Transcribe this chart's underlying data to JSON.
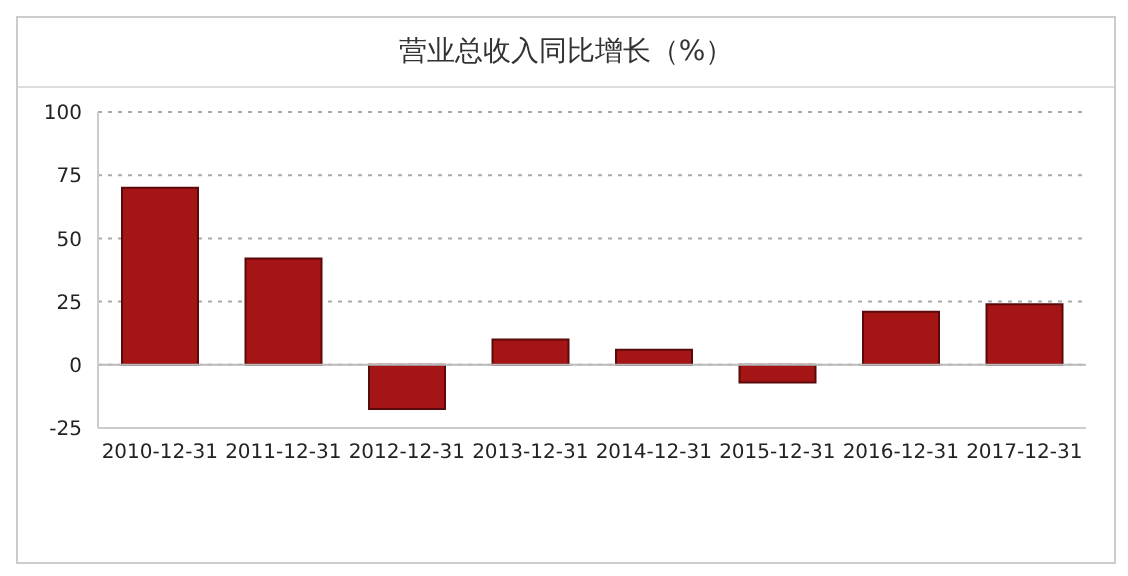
{
  "chart_data": {
    "type": "bar",
    "title": "营业总收入同比增长（%）",
    "categories": [
      "2010-12-31",
      "2011-12-31",
      "2012-12-31",
      "2013-12-31",
      "2014-12-31",
      "2015-12-31",
      "2016-12-31",
      "2017-12-31"
    ],
    "values": [
      70,
      42,
      -17.5,
      10,
      6,
      -7,
      21,
      24
    ],
    "color": "#a51515",
    "ylim": [
      -25,
      100
    ],
    "yticks": [
      -25,
      0,
      25,
      50,
      75,
      100
    ],
    "grid": "y"
  }
}
